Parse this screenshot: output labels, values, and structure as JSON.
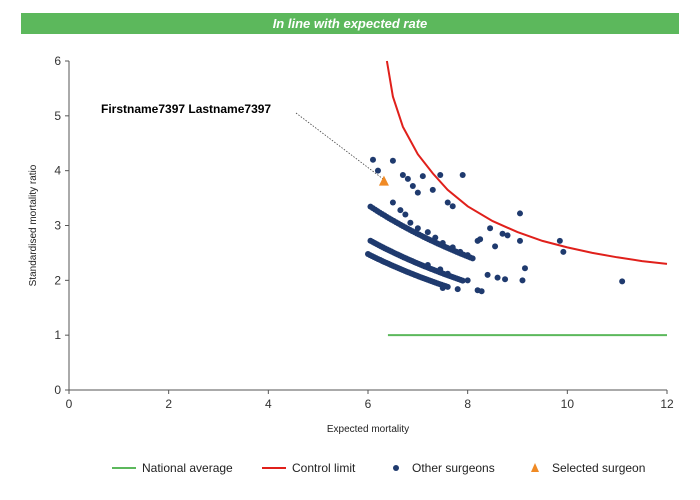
{
  "banner": {
    "text": "In line with expected rate"
  },
  "chart_data": {
    "type": "scatter",
    "xlabel": "Expected mortality",
    "ylabel": "Standardised mortality ratio",
    "xlim": [
      0,
      12
    ],
    "ylim": [
      0,
      6
    ],
    "xticks": [
      0,
      2,
      4,
      6,
      8,
      10,
      12
    ],
    "yticks": [
      0,
      1,
      2,
      3,
      4,
      5,
      6
    ],
    "grid": false,
    "legend_position": "bottom",
    "national_average": {
      "name": "National average",
      "color": "#5cb85c",
      "x": [
        6.4,
        12
      ],
      "y": [
        1,
        1
      ]
    },
    "control_limit": {
      "name": "Control limit",
      "color": "#e0201b",
      "x": [
        6.38,
        6.5,
        6.7,
        7.0,
        7.3,
        7.6,
        8.0,
        8.5,
        9.0,
        9.5,
        10.0,
        10.5,
        11.0,
        11.5,
        12.0
      ],
      "y": [
        6.0,
        5.35,
        4.8,
        4.3,
        3.95,
        3.65,
        3.35,
        3.08,
        2.88,
        2.72,
        2.6,
        2.5,
        2.42,
        2.35,
        2.3
      ]
    },
    "other_surgeons": {
      "name": "Other surgeons",
      "color": "#1f3a6e",
      "points": [
        [
          6.1,
          4.2
        ],
        [
          6.2,
          4.0
        ],
        [
          6.5,
          4.18
        ],
        [
          6.7,
          3.92
        ],
        [
          6.8,
          3.85
        ],
        [
          6.9,
          3.72
        ],
        [
          7.0,
          3.6
        ],
        [
          7.1,
          3.9
        ],
        [
          7.3,
          3.65
        ],
        [
          7.45,
          3.92
        ],
        [
          7.6,
          3.42
        ],
        [
          7.7,
          3.35
        ],
        [
          7.9,
          3.92
        ],
        [
          8.45,
          2.95
        ],
        [
          8.55,
          2.62
        ],
        [
          8.7,
          2.85
        ],
        [
          8.8,
          2.82
        ],
        [
          9.05,
          3.22
        ],
        [
          9.05,
          2.72
        ],
        [
          9.1,
          2.0
        ],
        [
          9.15,
          2.22
        ],
        [
          9.85,
          2.72
        ],
        [
          9.92,
          2.52
        ],
        [
          11.1,
          1.98
        ],
        [
          6.5,
          3.42
        ],
        [
          6.65,
          3.28
        ],
        [
          6.75,
          3.2
        ],
        [
          6.85,
          3.05
        ],
        [
          7.0,
          2.95
        ],
        [
          7.2,
          2.88
        ],
        [
          7.35,
          2.78
        ],
        [
          7.5,
          2.68
        ],
        [
          7.7,
          2.6
        ],
        [
          7.85,
          2.52
        ],
        [
          8.0,
          2.46
        ],
        [
          8.2,
          2.72
        ],
        [
          8.25,
          2.75
        ],
        [
          8.6,
          2.05
        ],
        [
          8.75,
          2.02
        ],
        [
          8.2,
          1.82
        ],
        [
          8.28,
          1.8
        ],
        [
          8.4,
          2.1
        ],
        [
          8.0,
          2.0
        ],
        [
          7.8,
          1.84
        ],
        [
          7.5,
          1.86
        ],
        [
          7.6,
          2.12
        ],
        [
          7.2,
          2.28
        ],
        [
          7.45,
          2.2
        ]
      ],
      "curves": [
        {
          "a": 6.05,
          "b": 8.1,
          "n": 45,
          "k": 20.4
        },
        {
          "a": 6.05,
          "b": 7.9,
          "n": 45,
          "k": 16.6
        },
        {
          "a": 6.0,
          "b": 7.6,
          "n": 40,
          "k": 15.0
        }
      ]
    },
    "selected_surgeon": {
      "name": "Selected surgeon",
      "color": "#f08a24",
      "x": 6.32,
      "y": 3.8,
      "label": "Firstname7397 Lastname7397"
    }
  }
}
